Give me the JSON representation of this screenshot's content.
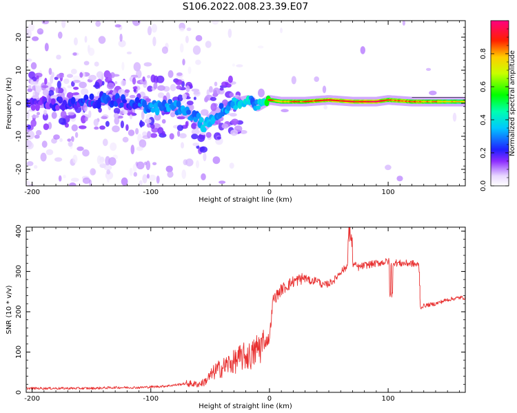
{
  "figure": {
    "title": "S106.2022.008.23.39.E07"
  },
  "chart_data": [
    {
      "type": "heatmap",
      "title": "S106.2022.008.23.39.E07",
      "xlabel": "Height of straight line (km)",
      "ylabel": "Frequency (Hz)",
      "xlim": [
        -205,
        165
      ],
      "ylim": [
        -25,
        25
      ],
      "x_ticks": [
        -200,
        -100,
        0,
        100
      ],
      "y_ticks": [
        -20,
        -10,
        0,
        10,
        20
      ],
      "grid": false,
      "colorbar": {
        "label": "Normalized spectral amplitude",
        "range": [
          0,
          1
        ],
        "ticks": [
          "0.0",
          "0.2",
          "0.4",
          "0.6",
          "0.8"
        ],
        "colormap": "hsv-rainbow (white-lavender at 0 to magenta at 1)",
        "low_color": "#ffffff",
        "high_color": "#ff0080"
      },
      "ridge": {
        "x": [
          -205,
          -180,
          -160,
          -140,
          -120,
          -100,
          -80,
          -60,
          -55,
          -45,
          -35,
          -25,
          -18,
          -15,
          -10,
          -5,
          0,
          10,
          30,
          50,
          70,
          90,
          100,
          120,
          165
        ],
        "frequency": [
          0,
          0,
          0,
          1,
          0,
          -1,
          -1,
          -5,
          -7,
          -3,
          -1,
          0.5,
          1,
          0.5,
          -1,
          0,
          1,
          0.5,
          0.5,
          1,
          0.5,
          0.5,
          1,
          0.5,
          0.5
        ],
        "amplitude": [
          0.15,
          0.18,
          0.2,
          0.25,
          0.2,
          0.3,
          0.3,
          0.3,
          0.35,
          0.3,
          0.3,
          0.35,
          0.4,
          0.3,
          0.35,
          0.4,
          0.6,
          0.55,
          0.6,
          0.65,
          0.65,
          0.7,
          0.6,
          0.6,
          0.5
        ]
      }
    },
    {
      "type": "line",
      "title": "",
      "xlabel": "Height of straight line (km)",
      "ylabel": "SNR (10 * v/v)",
      "xlim": [
        -205,
        165
      ],
      "ylim": [
        0,
        410
      ],
      "x_ticks": [
        -200,
        -100,
        0,
        100
      ],
      "y_ticks": [
        0,
        100,
        200,
        300,
        400
      ],
      "grid": false,
      "series": [
        {
          "name": "",
          "color": "#e83030",
          "x": [
            -205,
            -190,
            -170,
            -150,
            -130,
            -110,
            -90,
            -80,
            -70,
            -60,
            -55,
            -50,
            -45,
            -40,
            -35,
            -30,
            -25,
            -20,
            -15,
            -10,
            -5,
            0,
            3,
            6,
            10,
            15,
            20,
            25,
            30,
            35,
            40,
            45,
            50,
            55,
            60,
            65,
            68,
            70,
            75,
            80,
            90,
            100,
            110,
            120,
            126,
            127,
            130,
            140,
            150,
            160,
            165
          ],
          "y": [
            10,
            10,
            10,
            10,
            12,
            12,
            15,
            18,
            22,
            20,
            25,
            40,
            55,
            60,
            70,
            75,
            85,
            90,
            90,
            110,
            120,
            135,
            230,
            240,
            255,
            265,
            275,
            280,
            285,
            275,
            280,
            265,
            270,
            280,
            300,
            310,
            380,
            320,
            310,
            315,
            320,
            325,
            320,
            320,
            315,
            210,
            215,
            220,
            230,
            235,
            235
          ]
        }
      ]
    }
  ]
}
